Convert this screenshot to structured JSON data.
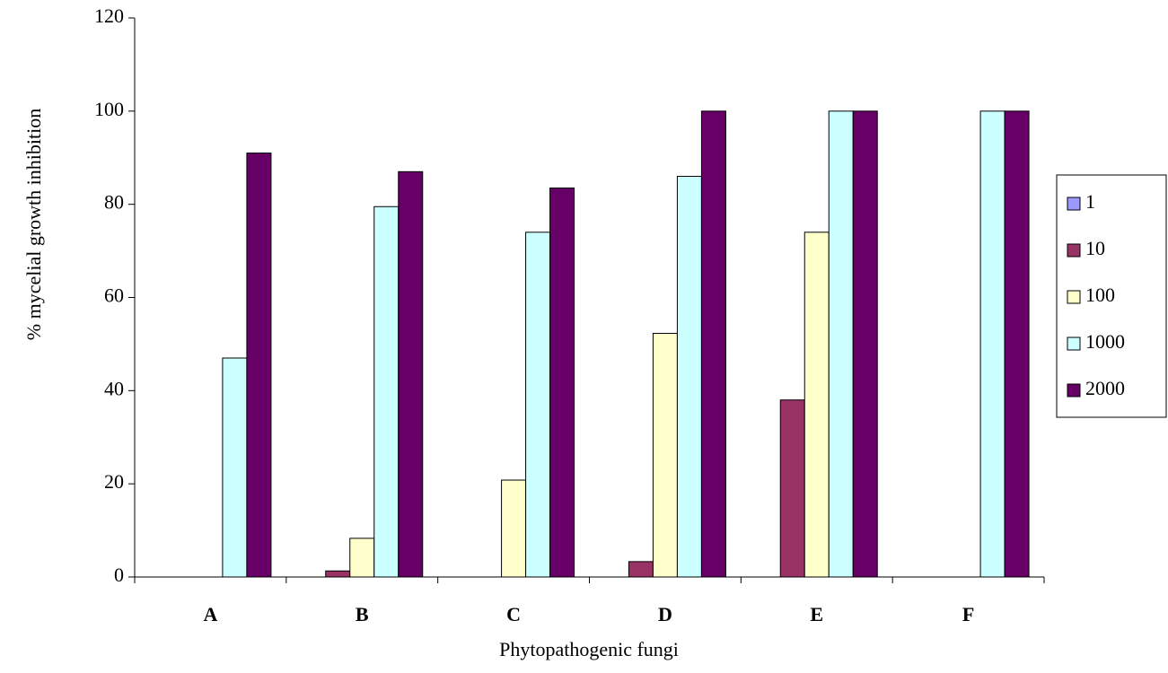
{
  "chart_data": {
    "type": "bar",
    "y_label": "% mycelial growth inhibition",
    "x_label": "Phytopathogenic fungi",
    "categories": [
      "A",
      "B",
      "C",
      "D",
      "E",
      "F"
    ],
    "series": [
      {
        "name": "1",
        "color": "#9999ff",
        "values": [
          0,
          0,
          0,
          0,
          0,
          0
        ]
      },
      {
        "name": "10",
        "color": "#993366",
        "values": [
          0,
          1.3,
          0,
          3.3,
          38,
          0
        ]
      },
      {
        "name": "100",
        "color": "#ffffcc",
        "values": [
          0,
          8.3,
          20.8,
          52.3,
          74,
          0
        ]
      },
      {
        "name": "1000",
        "color": "#ccffff",
        "values": [
          47,
          79.5,
          74,
          86,
          100,
          100
        ]
      },
      {
        "name": "2000",
        "color": "#660066",
        "values": [
          91,
          87,
          83.5,
          100,
          100,
          100
        ]
      }
    ],
    "ylim": [
      0,
      120
    ],
    "yticks": [
      0,
      20,
      40,
      60,
      80,
      100,
      120
    ],
    "grid": false,
    "legend": "right"
  }
}
